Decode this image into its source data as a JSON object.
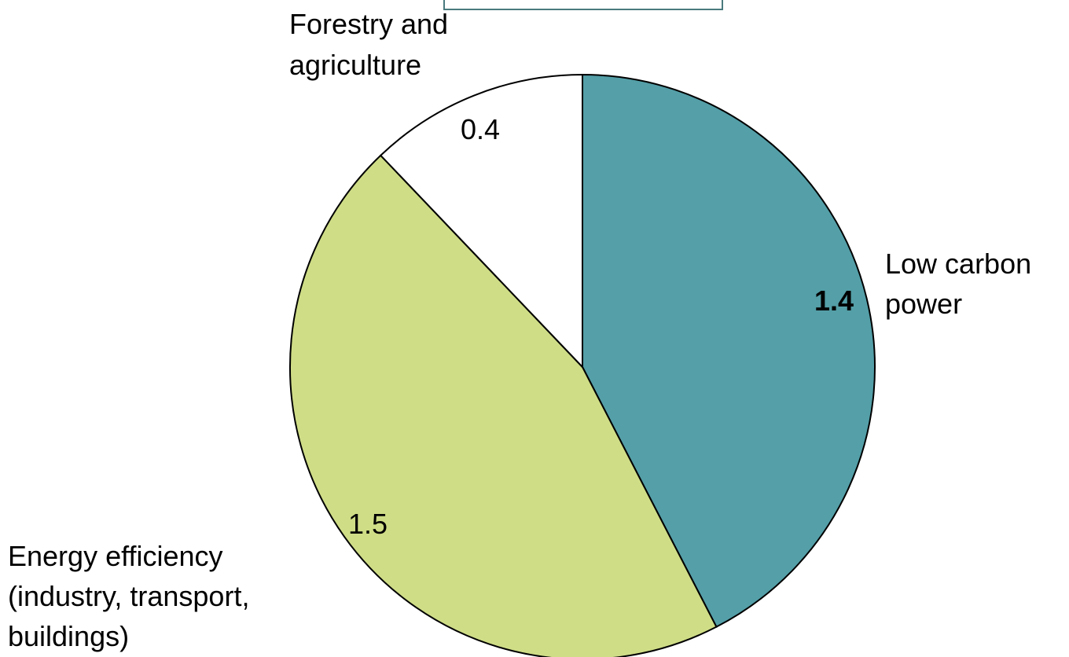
{
  "chart_data": {
    "type": "pie",
    "title": "",
    "slices": [
      {
        "category": "Low carbon power",
        "value": 1.4,
        "value_label": "1.4",
        "color": "#549fa8",
        "value_label_color": "#ffffff",
        "value_label_bold": true
      },
      {
        "category": "Energy efficiency (industry, transport, buildings)",
        "value": 1.5,
        "value_label": "1.5",
        "color": "#cfdd86",
        "value_label_color": "#000000",
        "value_label_bold": false
      },
      {
        "category": "Forestry and agriculture",
        "value": 0.4,
        "value_label": "0.4",
        "color": "#ffffff",
        "value_label_color": "#000000",
        "value_label_bold": false
      }
    ],
    "category_labels": {
      "low_carbon_power": [
        "Low carbon",
        "power"
      ],
      "energy_efficiency": [
        "Energy efficiency",
        "(industry, transport,",
        "buildings)"
      ],
      "forestry_agriculture": [
        "Forestry and",
        "agriculture"
      ]
    },
    "start_angle": "12 o'clock",
    "direction": "clockwise",
    "stroke_color": "#000000",
    "top_box_border_color": "#4a7a7f"
  }
}
